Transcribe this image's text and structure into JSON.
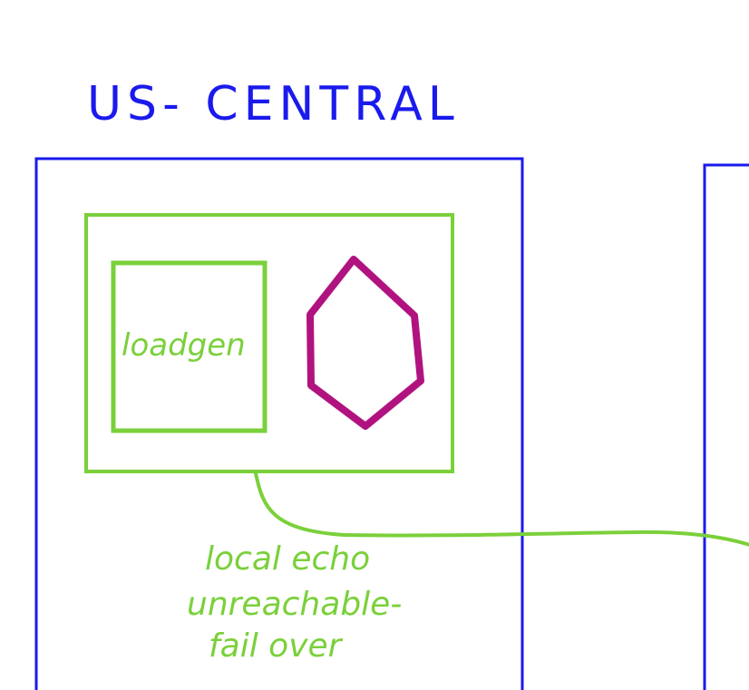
{
  "region": {
    "title": "US- CENTRAL"
  },
  "loadgen": {
    "label": "loadgen"
  },
  "annotation": {
    "lines": [
      "local echo",
      "unreachable-",
      "fail over"
    ]
  },
  "colors": {
    "region_border": "#1a1aee",
    "pod_border": "#7ad03a",
    "service_hexagon": "#b0137f",
    "connection_line": "#7ad03a"
  }
}
